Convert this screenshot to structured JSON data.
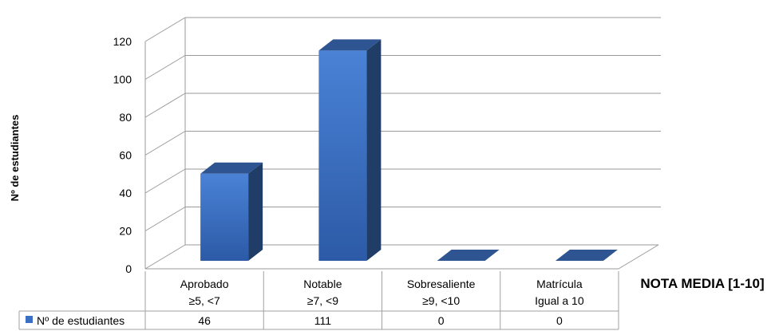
{
  "chart_data": {
    "type": "bar",
    "view": "3d-column-with-data-table",
    "categories": [
      [
        "Aprobado",
        "≥5, <7"
      ],
      [
        "Notable",
        "≥7, <9"
      ],
      [
        "Sobresaliente",
        "≥9, <10"
      ],
      [
        "Matrícula",
        "Igual a 10"
      ]
    ],
    "series": [
      {
        "name": "Nº de estudiantes",
        "values": [
          46,
          111,
          0,
          0
        ],
        "color": "#3A6FC4"
      }
    ],
    "xlabel": "NOTA MEDIA [1-10]",
    "ylabel": "Nº de estudiantes",
    "ylim": [
      0,
      120
    ],
    "yticks": [
      0,
      20,
      40,
      60,
      80,
      100,
      120
    ],
    "grid": true,
    "data_table": true,
    "colors": {
      "bar_front": "#3A6FC4",
      "bar_side": "#1F3D66",
      "bar_top": "#2E5592",
      "grid": "#9a9a9a"
    }
  }
}
